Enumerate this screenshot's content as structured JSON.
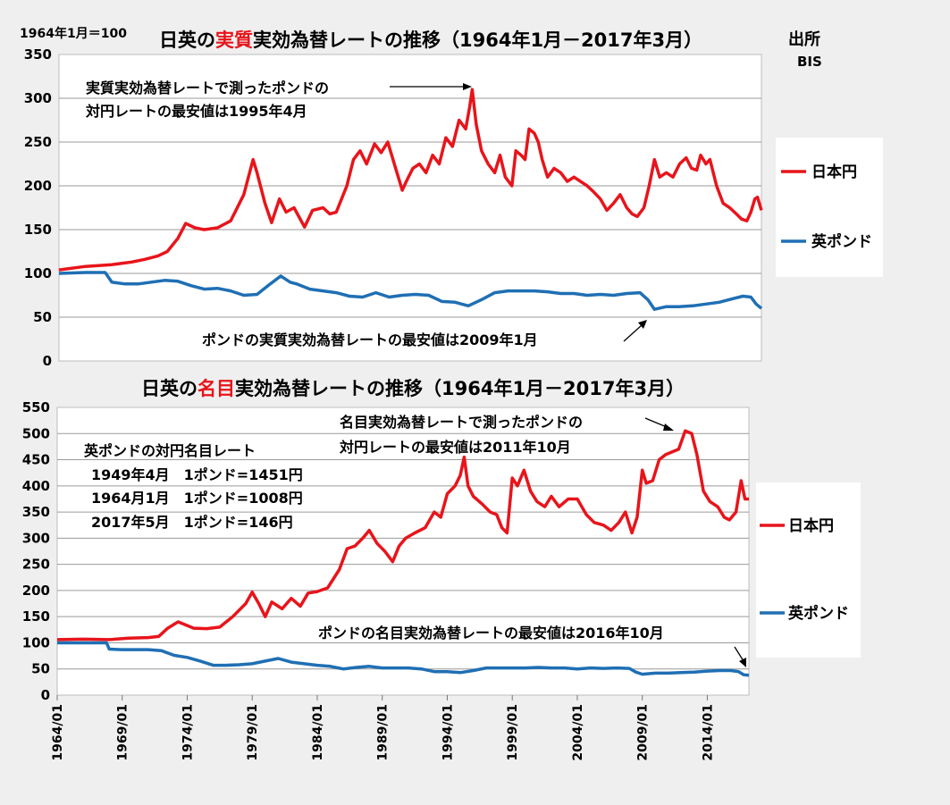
{
  "colors": {
    "japan": "#e8141b",
    "uk": "#1f6fb4",
    "accent": "#e8141b"
  },
  "top": {
    "base_note": "1964年1月＝100",
    "title_pre": "日英の",
    "title_accent": "実質",
    "title_post": "実効為替レートの推移（1964年1月－2017年3月）",
    "source_label": "出所",
    "source_name": "BIS",
    "annotation_1_line1": "実質実効為替レートで測ったポンドの",
    "annotation_1_line2": "対円レートの最安値は1995年4月",
    "annotation_2": "ポンドの実質実効為替レートの最安値は2009年1月",
    "legend": [
      "日本円",
      "英ポンド"
    ]
  },
  "bottom": {
    "title_pre": "日英の",
    "title_accent": "名目",
    "title_post": "実効為替レートの推移（1964年1月－2017年3月）",
    "annotation_1_line1": "名目実効為替レートで測ったポンドの",
    "annotation_1_line2": "対円レートの最安値は2011年10月",
    "annotation_2": "ポンドの名目実効為替レートの最安値は2016年10月",
    "info_title": "英ポンドの対円名目レート",
    "info_lines": [
      "1949年4月　1ポンド=1451円",
      "1964月1月　1ポンド=1008円",
      "2017年5月　1ポンド=146円"
    ],
    "legend": [
      "日本円",
      "英ポンド"
    ]
  },
  "x_ticks": [
    "1964/01",
    "1969/01",
    "1974/01",
    "1979/01",
    "1984/01",
    "1989/01",
    "1994/01",
    "1999/01",
    "2004/01",
    "2009/01",
    "2014/01"
  ],
  "chart_data": [
    {
      "type": "line",
      "title": "日英の実質実効為替レートの推移（1964年1月－2017年3月）",
      "ylim": [
        0,
        350
      ],
      "yticks": [
        0,
        50,
        100,
        150,
        200,
        250,
        300,
        350
      ],
      "x_range": [
        1964.0,
        2017.2
      ],
      "series": [
        {
          "name": "日本円",
          "x": [
            1964.0,
            1966.0,
            1968.0,
            1969.5,
            1970.5,
            1971.5,
            1972.2,
            1973.0,
            1973.6,
            1974.3,
            1975.0,
            1976.0,
            1977.0,
            1978.0,
            1978.7,
            1979.0,
            1979.6,
            1980.1,
            1980.7,
            1981.2,
            1981.8,
            1982.6,
            1983.2,
            1984.0,
            1984.5,
            1985.0,
            1985.8,
            1986.3,
            1986.8,
            1987.3,
            1987.9,
            1988.4,
            1988.9,
            1989.5,
            1990.0,
            1990.3,
            1990.8,
            1991.3,
            1991.8,
            1992.3,
            1992.8,
            1993.3,
            1993.8,
            1994.3,
            1994.8,
            1995.1,
            1995.3,
            1995.6,
            1996.0,
            1996.5,
            1997.0,
            1997.4,
            1997.8,
            1998.3,
            1998.6,
            1999.0,
            1999.3,
            1999.6,
            2000.0,
            2000.3,
            2000.6,
            2001.0,
            2001.5,
            2002.0,
            2002.5,
            2003.0,
            2003.5,
            2004.0,
            2004.5,
            2005.0,
            2005.5,
            2006.0,
            2006.5,
            2007.0,
            2007.4,
            2007.8,
            2008.3,
            2008.7,
            2009.1,
            2009.5,
            2010.0,
            2010.5,
            2011.0,
            2011.5,
            2011.9,
            2012.3,
            2012.6,
            2013.0,
            2013.3,
            2013.8,
            2014.3,
            2014.8,
            2015.3,
            2015.7,
            2016.1,
            2016.4,
            2016.7,
            2016.9,
            2017.2
          ],
          "y": [
            104,
            108,
            110,
            113,
            116,
            120,
            125,
            140,
            157,
            152,
            150,
            152,
            160,
            190,
            230,
            215,
            180,
            158,
            185,
            170,
            175,
            153,
            172,
            175,
            168,
            170,
            200,
            230,
            240,
            225,
            248,
            238,
            250,
            220,
            195,
            205,
            220,
            225,
            215,
            235,
            225,
            255,
            245,
            275,
            265,
            290,
            310,
            270,
            240,
            225,
            215,
            235,
            210,
            200,
            240,
            235,
            230,
            265,
            260,
            250,
            230,
            210,
            220,
            215,
            205,
            210,
            205,
            200,
            193,
            185,
            172,
            180,
            190,
            175,
            168,
            165,
            175,
            200,
            230,
            210,
            215,
            210,
            225,
            232,
            220,
            218,
            235,
            225,
            230,
            200,
            180,
            175,
            168,
            162,
            160,
            170,
            185,
            187,
            172
          ]
        },
        {
          "name": "英ポンド",
          "x": [
            1964.0,
            1966.0,
            1967.5,
            1968.0,
            1969.0,
            1970.0,
            1971.0,
            1972.0,
            1973.0,
            1974.0,
            1975.0,
            1976.0,
            1977.0,
            1978.0,
            1979.0,
            1980.0,
            1980.8,
            1981.5,
            1982.0,
            1983.0,
            1984.0,
            1985.0,
            1986.0,
            1987.0,
            1988.0,
            1989.0,
            1990.0,
            1991.0,
            1992.0,
            1993.0,
            1994.0,
            1995.0,
            1996.0,
            1997.0,
            1998.0,
            1999.0,
            2000.0,
            2001.0,
            2002.0,
            2003.0,
            2004.0,
            2005.0,
            2006.0,
            2007.0,
            2008.0,
            2008.6,
            2009.1,
            2010.0,
            2011.0,
            2012.0,
            2013.0,
            2014.0,
            2015.0,
            2015.8,
            2016.4,
            2016.8,
            2017.2
          ],
          "y": [
            100,
            101,
            101,
            90,
            88,
            88,
            90,
            92,
            91,
            86,
            82,
            83,
            80,
            75,
            76,
            88,
            97,
            90,
            88,
            82,
            80,
            78,
            74,
            73,
            78,
            73,
            75,
            76,
            75,
            68,
            67,
            63,
            70,
            78,
            80,
            80,
            80,
            79,
            77,
            77,
            75,
            76,
            75,
            77,
            78,
            70,
            59,
            62,
            62,
            63,
            65,
            67,
            71,
            74,
            73,
            65,
            60
          ]
        }
      ]
    },
    {
      "type": "line",
      "title": "日英の名目実効為替レートの推移（1964年1月－2017年3月）",
      "ylim": [
        0,
        550
      ],
      "yticks": [
        0,
        50,
        100,
        150,
        200,
        250,
        300,
        350,
        400,
        450,
        500,
        550
      ],
      "x_range": [
        1964.0,
        2017.2
      ],
      "series": [
        {
          "name": "日本円",
          "x": [
            1964.0,
            1966.0,
            1968.0,
            1969.5,
            1971.0,
            1971.8,
            1972.5,
            1973.3,
            1974.5,
            1975.5,
            1976.5,
            1977.5,
            1978.5,
            1979.0,
            1979.5,
            1980.0,
            1980.5,
            1981.3,
            1982.0,
            1982.7,
            1983.3,
            1984.0,
            1984.8,
            1985.7,
            1986.3,
            1986.9,
            1987.5,
            1988.0,
            1988.6,
            1989.2,
            1989.8,
            1990.3,
            1990.8,
            1991.5,
            1992.3,
            1993.0,
            1993.5,
            1994.0,
            1994.6,
            1995.0,
            1995.3,
            1995.6,
            1996.0,
            1996.7,
            1997.3,
            1997.8,
            1998.2,
            1998.6,
            1999.0,
            1999.4,
            1999.9,
            2000.4,
            2000.9,
            2001.5,
            2002.0,
            2002.6,
            2003.3,
            2004.0,
            2004.7,
            2005.3,
            2006.0,
            2006.6,
            2007.2,
            2007.7,
            2008.2,
            2008.6,
            2009.0,
            2009.3,
            2009.8,
            2010.3,
            2010.8,
            2011.3,
            2011.8,
            2012.3,
            2012.8,
            2013.2,
            2013.7,
            2014.2,
            2014.8,
            2015.3,
            2015.7,
            2016.2,
            2016.6,
            2016.9,
            2017.2
          ],
          "y": [
            106,
            107,
            106,
            109,
            110,
            112,
            128,
            140,
            128,
            127,
            130,
            150,
            175,
            197,
            175,
            150,
            178,
            165,
            185,
            170,
            195,
            198,
            205,
            240,
            280,
            285,
            300,
            315,
            290,
            275,
            255,
            285,
            300,
            310,
            320,
            350,
            340,
            385,
            400,
            420,
            455,
            400,
            380,
            365,
            350,
            345,
            320,
            310,
            415,
            400,
            430,
            390,
            370,
            360,
            380,
            360,
            375,
            375,
            345,
            330,
            325,
            315,
            330,
            350,
            310,
            340,
            430,
            405,
            410,
            450,
            460,
            465,
            470,
            505,
            500,
            460,
            390,
            370,
            360,
            340,
            335,
            350,
            410,
            375,
            375
          ]
        },
        {
          "name": "英ポンド",
          "x": [
            1964.0,
            1966.0,
            1967.8,
            1968.0,
            1969.0,
            1970.0,
            1971.0,
            1972.0,
            1973.0,
            1974.0,
            1975.0,
            1976.0,
            1977.0,
            1978.0,
            1979.0,
            1980.0,
            1981.0,
            1982.0,
            1983.0,
            1984.0,
            1985.0,
            1986.0,
            1987.0,
            1988.0,
            1989.0,
            1990.0,
            1991.0,
            1992.0,
            1993.0,
            1994.0,
            1995.0,
            1996.0,
            1997.0,
            1998.0,
            1999.0,
            2000.0,
            2001.0,
            2002.0,
            2003.0,
            2004.0,
            2005.0,
            2006.0,
            2007.0,
            2008.0,
            2008.5,
            2009.0,
            2010.0,
            2011.0,
            2012.0,
            2013.0,
            2014.0,
            2015.0,
            2015.8,
            2016.4,
            2016.8,
            2017.2
          ],
          "y": [
            100,
            100,
            100,
            88,
            87,
            87,
            87,
            85,
            76,
            72,
            65,
            57,
            57,
            58,
            60,
            65,
            70,
            63,
            60,
            57,
            55,
            50,
            53,
            55,
            52,
            52,
            52,
            50,
            45,
            45,
            43,
            47,
            52,
            52,
            52,
            52,
            53,
            52,
            52,
            50,
            52,
            51,
            52,
            51,
            44,
            40,
            42,
            42,
            43,
            44,
            46,
            47,
            47,
            45,
            39,
            38
          ]
        }
      ]
    }
  ]
}
